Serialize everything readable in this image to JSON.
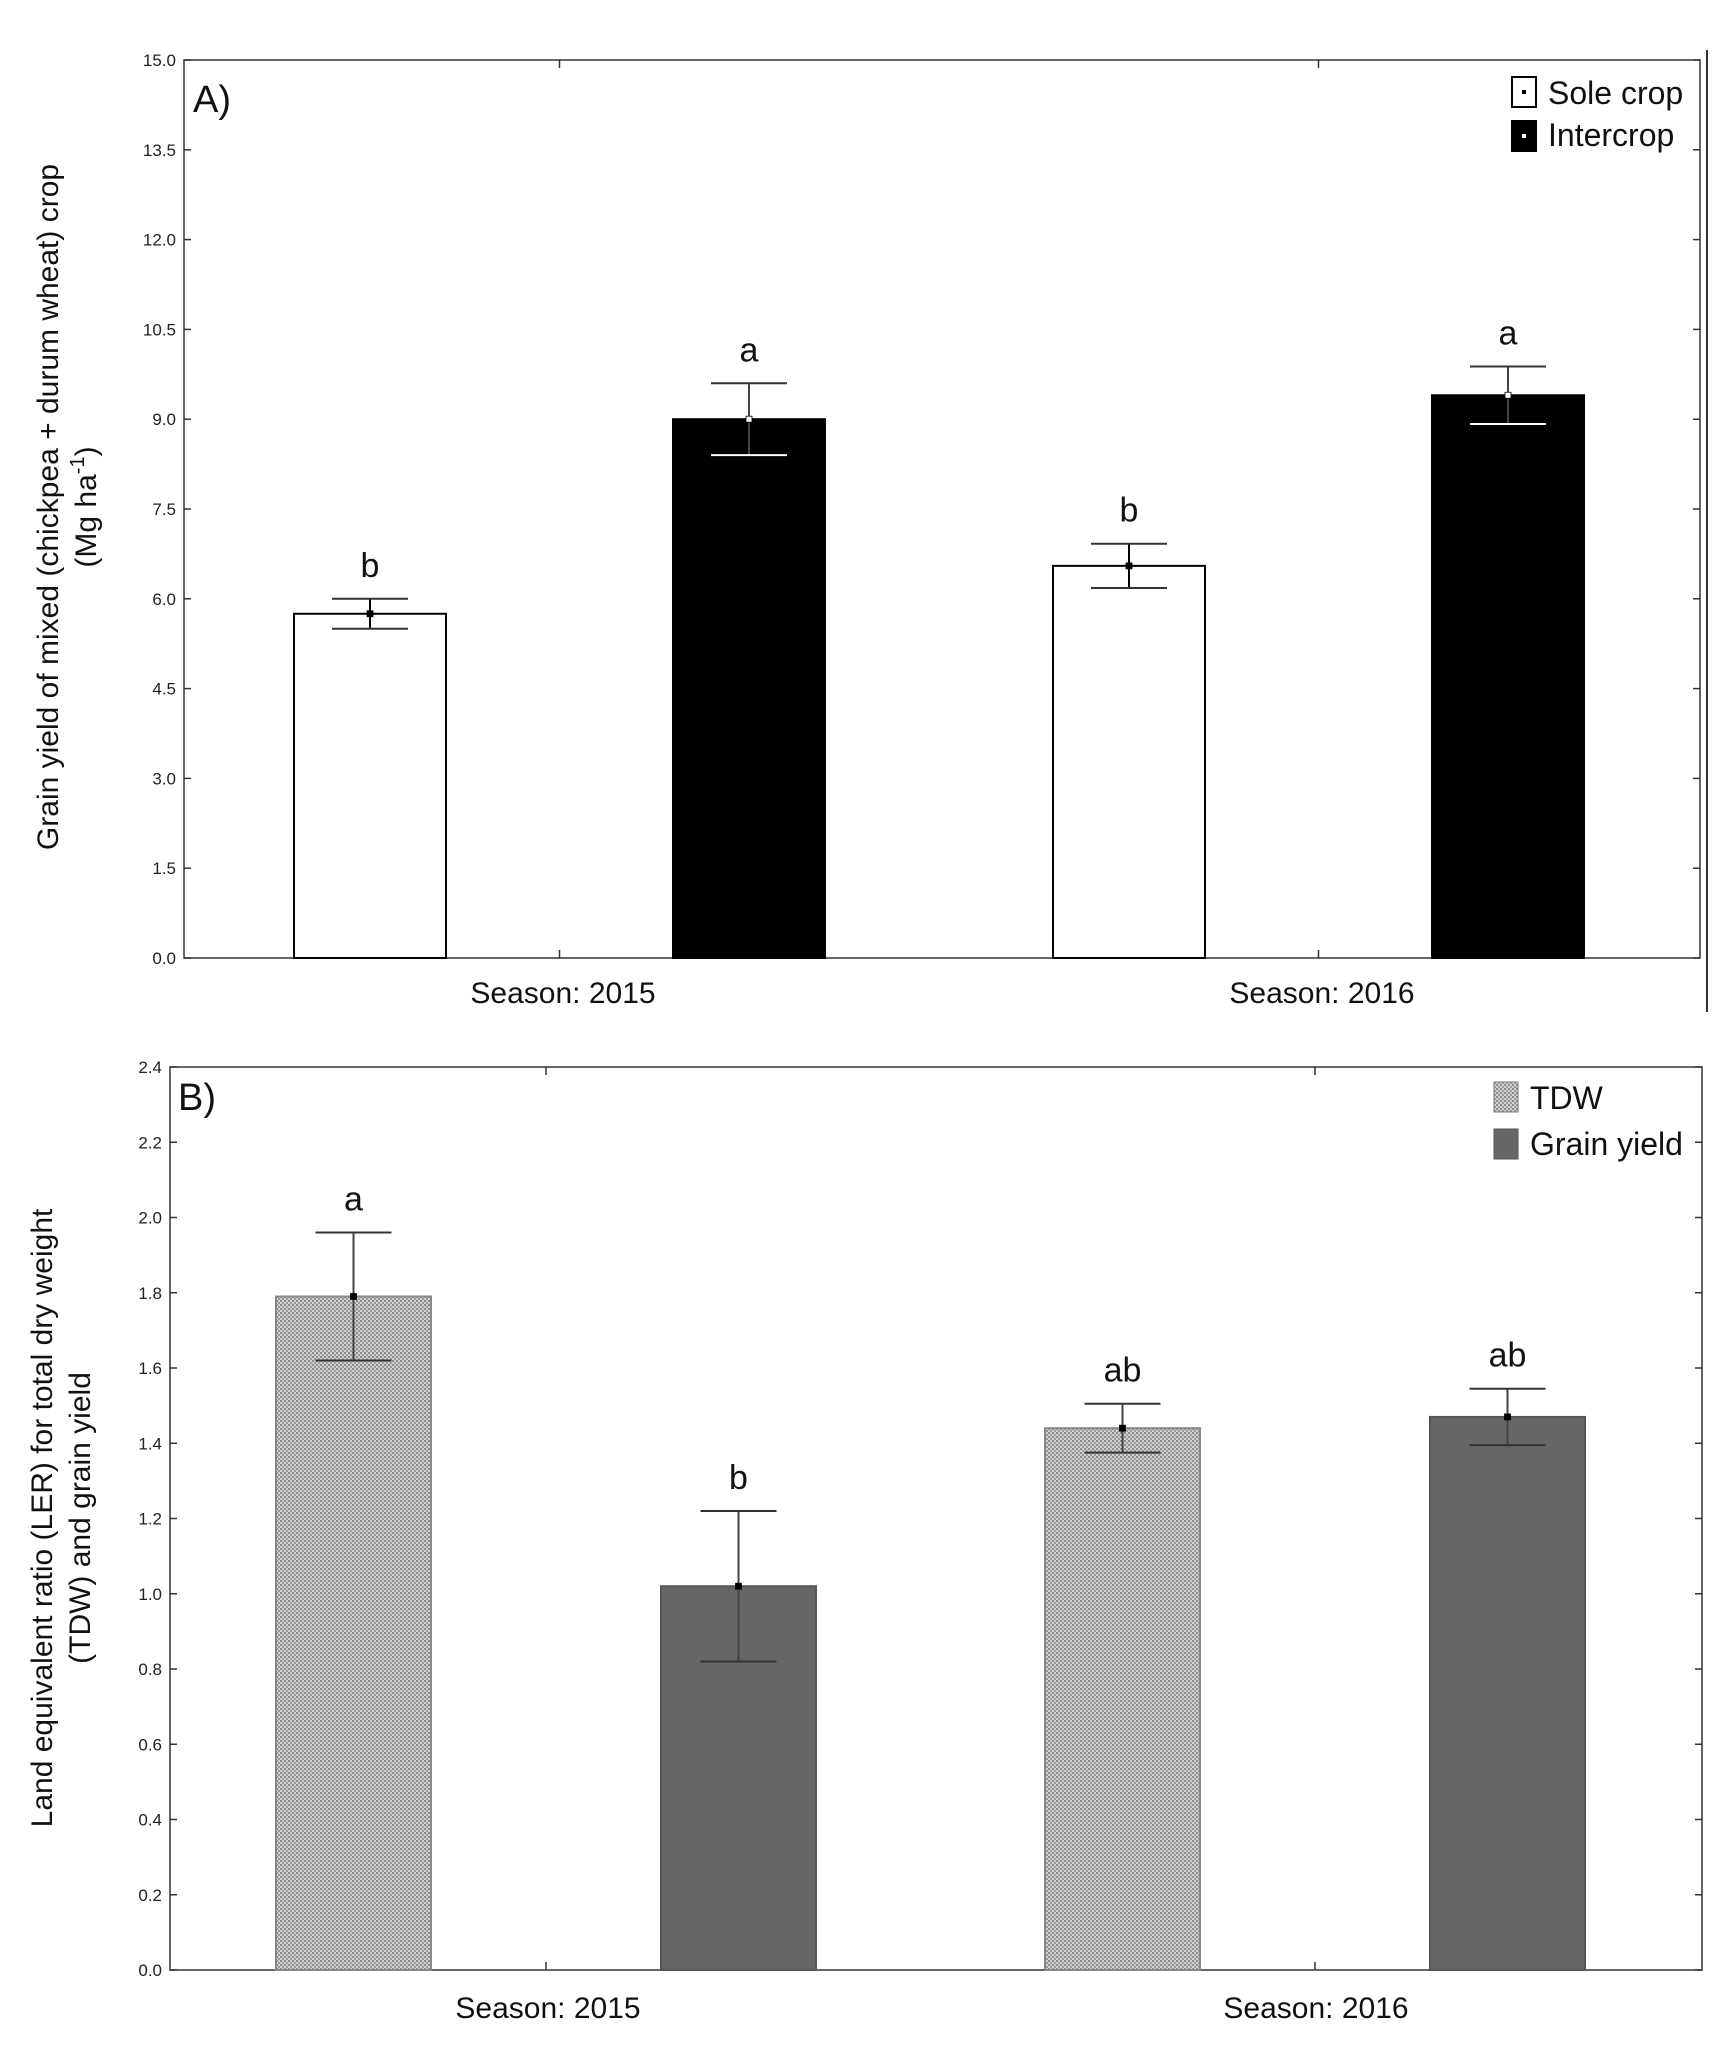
{
  "chart_data": [
    {
      "type": "bar",
      "panel": "A)",
      "categories": [
        "Season: 2015",
        "Season: 2016"
      ],
      "ylabel_line1": "Grain yield of mixed (chickpea + durum wheat) crop",
      "ylabel_line2_pre": "(Mg ha",
      "ylabel_line2_sup": "-1",
      "ylabel_line2_post": ")",
      "ylim": [
        0,
        15
      ],
      "yticks": [
        "0.0",
        "1.5",
        "3.0",
        "4.5",
        "6.0",
        "7.5",
        "9.0",
        "10.5",
        "12.0",
        "13.5",
        "15.0"
      ],
      "legend_position": "top-right",
      "series": [
        {
          "name": "Sole crop",
          "color": "#ffffff",
          "values": [
            5.75,
            6.55
          ],
          "errors": [
            0.25,
            0.37
          ],
          "letters": [
            "b",
            "b"
          ]
        },
        {
          "name": "Intercrop",
          "color": "#000000",
          "values": [
            9.0,
            9.4
          ],
          "errors": [
            0.6,
            0.48
          ],
          "letters": [
            "a",
            "a"
          ]
        }
      ]
    },
    {
      "type": "bar",
      "panel": "B)",
      "categories": [
        "Season: 2015",
        "Season: 2016"
      ],
      "ylabel_line1": "Land equivalent ratio (LER) for total dry weight",
      "ylabel_line2": "(TDW) and grain yield",
      "ylim": [
        0,
        2.4
      ],
      "yticks": [
        "0.0",
        "0.2",
        "0.4",
        "0.6",
        "0.8",
        "1.0",
        "1.2",
        "1.4",
        "1.6",
        "1.8",
        "2.0",
        "2.2",
        "2.4"
      ],
      "legend_position": "top-right",
      "series": [
        {
          "name": "TDW",
          "color": "#bdbdbd",
          "values": [
            1.79,
            1.44
          ],
          "errors": [
            0.17,
            0.065
          ],
          "letters": [
            "a",
            "ab"
          ]
        },
        {
          "name": "Grain yield",
          "color": "#666666",
          "values": [
            1.02,
            1.47
          ],
          "errors": [
            0.2,
            0.075
          ],
          "letters": [
            "b",
            "ab"
          ]
        }
      ]
    }
  ]
}
